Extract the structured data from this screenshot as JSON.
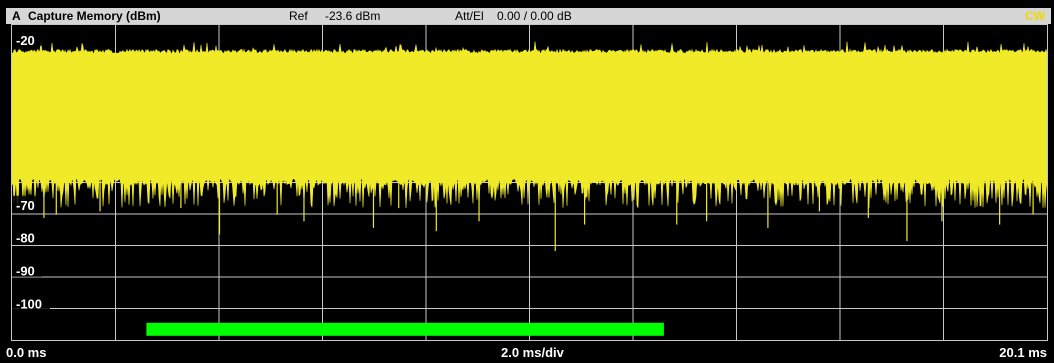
{
  "header": {
    "screen_label": "A",
    "trace_title": "Capture Memory (dBm)",
    "ref_label": "Ref",
    "ref_value": "-23.6 dBm",
    "att_label": "Att/El",
    "att_value": "0.00 / 0.00 dB",
    "mode_badge": "CW"
  },
  "footer": {
    "x_start": "0.0 ms",
    "x_div": "2.0 ms/div",
    "x_stop": "20.1 ms"
  },
  "colors": {
    "background": "#000000",
    "header_bg": "#d6d6d6",
    "grid": "#c8c8c8",
    "trace": "#f0ea28",
    "gating_bar": "#00ff00",
    "badge": "#f0d800"
  },
  "chart_data": {
    "type": "area",
    "title": "Capture Memory (dBm)",
    "xlabel": "",
    "ylabel": "",
    "x_unit": "ms",
    "xlim": [
      0,
      20.1
    ],
    "x_divisions": 10,
    "ylim": [
      -111,
      -15.5
    ],
    "y_ticks": [
      -20,
      -70,
      -80,
      -90,
      -100
    ],
    "y_tick_labels": [
      "-20",
      "-70",
      "-80",
      "-90",
      "-100"
    ],
    "grid": true,
    "series": [
      {
        "envelope_upper_typ_dBm": -23.5,
        "envelope_upper_peak_dBm": -21.5,
        "envelope_lower_typ_dBm": -62,
        "dip_min_dBm": -87,
        "dips": [
          {
            "x": 0.62,
            "y": -74
          },
          {
            "x": 0.86,
            "y": -73
          },
          {
            "x": 1.71,
            "y": -72
          },
          {
            "x": 3.28,
            "y": -71
          },
          {
            "x": 4.03,
            "y": -79
          },
          {
            "x": 5.15,
            "y": -73
          },
          {
            "x": 5.67,
            "y": -75
          },
          {
            "x": 7.02,
            "y": -77
          },
          {
            "x": 7.51,
            "y": -71
          },
          {
            "x": 8.24,
            "y": -78
          },
          {
            "x": 9.07,
            "y": -75
          },
          {
            "x": 10.55,
            "y": -84
          },
          {
            "x": 11.12,
            "y": -76
          },
          {
            "x": 12.91,
            "y": -76
          },
          {
            "x": 13.49,
            "y": -75
          },
          {
            "x": 14.68,
            "y": -77
          },
          {
            "x": 15.68,
            "y": -72
          },
          {
            "x": 16.63,
            "y": -74
          },
          {
            "x": 17.38,
            "y": -81
          },
          {
            "x": 18.06,
            "y": -75
          },
          {
            "x": 19.18,
            "y": -76
          },
          {
            "x": 19.83,
            "y": -73
          }
        ]
      }
    ],
    "gating_bar": {
      "x_start": 2.61,
      "x_end": 12.66,
      "y": -107
    }
  }
}
